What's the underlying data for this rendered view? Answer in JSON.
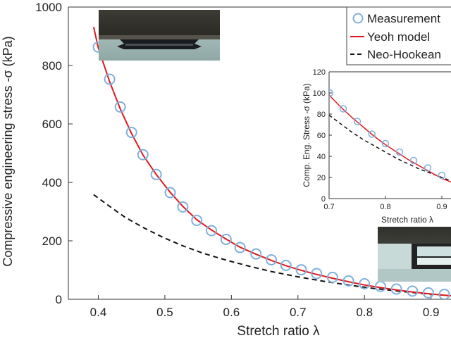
{
  "chart_data": [
    {
      "type": "line",
      "title": "",
      "xlabel": "Stretch ratio λ",
      "ylabel": "Compressive engineering stress -σ (kPa)",
      "xlim": [
        0.355,
        0.93
      ],
      "ylim": [
        0,
        1000
      ],
      "xticks": [
        0.4,
        0.5,
        0.6,
        0.7,
        0.8,
        0.9
      ],
      "yticks": [
        0,
        200,
        400,
        600,
        800,
        1000
      ],
      "grid": false,
      "legend": {
        "position": "top-right",
        "entries": [
          "Measurement",
          "Yeoh model",
          "Neo-Hookean"
        ]
      },
      "series": [
        {
          "name": "Measurement",
          "style": "markers",
          "color": "#7fb0dc",
          "x": [
            0.4,
            0.417,
            0.433,
            0.45,
            0.467,
            0.487,
            0.508,
            0.527,
            0.548,
            0.57,
            0.592,
            0.613,
            0.637,
            0.66,
            0.682,
            0.705,
            0.728,
            0.752,
            0.776,
            0.8,
            0.824,
            0.848,
            0.872,
            0.896,
            0.92
          ],
          "y": [
            863,
            753,
            658,
            571,
            495,
            427,
            365,
            316,
            270,
            235,
            205,
            177,
            155,
            135,
            116,
            101,
            88,
            75,
            63,
            53,
            44,
            35,
            28,
            22,
            17
          ]
        },
        {
          "name": "Yeoh model",
          "style": "solid",
          "color": "#e0191e",
          "x": [
            0.393,
            0.4,
            0.417,
            0.433,
            0.45,
            0.467,
            0.487,
            0.508,
            0.527,
            0.548,
            0.57,
            0.592,
            0.613,
            0.637,
            0.66,
            0.682,
            0.705,
            0.728,
            0.752,
            0.776,
            0.8,
            0.824,
            0.848,
            0.872,
            0.896,
            0.92,
            0.93
          ],
          "y": [
            932,
            860,
            745,
            651,
            567,
            494,
            427,
            366,
            318,
            272,
            237,
            206,
            178,
            154,
            133,
            115,
            99,
            85,
            72,
            60,
            49,
            40,
            32,
            25,
            19,
            14,
            12
          ]
        },
        {
          "name": "Neo-Hookean",
          "style": "dashed",
          "color": "#111111",
          "x": [
            0.393,
            0.417,
            0.44,
            0.467,
            0.497,
            0.527,
            0.558,
            0.592,
            0.627,
            0.66,
            0.697,
            0.735,
            0.775,
            0.814,
            0.855,
            0.896,
            0.93
          ],
          "y": [
            358,
            318,
            281,
            246,
            212,
            183,
            157,
            134,
            113,
            95,
            78,
            63,
            49,
            37,
            27,
            18,
            12
          ]
        }
      ]
    },
    {
      "type": "line",
      "title": "",
      "xlabel": "Stretch ratio λ",
      "ylabel": "Comp. Eng. Stress -σ (kPa)",
      "xlim": [
        0.7,
        0.92
      ],
      "ylim": [
        0,
        120
      ],
      "xticks": [
        0.7,
        0.8,
        0.9
      ],
      "yticks": [
        0,
        20,
        40,
        60,
        80,
        100,
        120
      ],
      "grid": false,
      "series": [
        {
          "name": "Measurement",
          "style": "markers",
          "color": "#7fb0dc",
          "x": [
            0.701,
            0.725,
            0.75,
            0.776,
            0.8,
            0.825,
            0.85,
            0.875,
            0.9
          ],
          "y": [
            100,
            85,
            73,
            61,
            52,
            44,
            36,
            29,
            22
          ]
        },
        {
          "name": "Yeoh model",
          "style": "solid",
          "color": "#e0191e",
          "x": [
            0.7,
            0.72,
            0.74,
            0.76,
            0.78,
            0.8,
            0.82,
            0.84,
            0.86,
            0.88,
            0.9,
            0.92
          ],
          "y": [
            98,
            87,
            77,
            68,
            59,
            51,
            44,
            37,
            31,
            25,
            19,
            15
          ]
        },
        {
          "name": "Neo-Hookean",
          "style": "dashed",
          "color": "#111111",
          "x": [
            0.7,
            0.72,
            0.74,
            0.76,
            0.78,
            0.8,
            0.82,
            0.84,
            0.86,
            0.88,
            0.9,
            0.92
          ],
          "y": [
            79,
            71,
            63,
            56,
            50,
            44,
            38,
            33,
            28,
            24,
            20,
            16
          ]
        }
      ]
    }
  ]
}
